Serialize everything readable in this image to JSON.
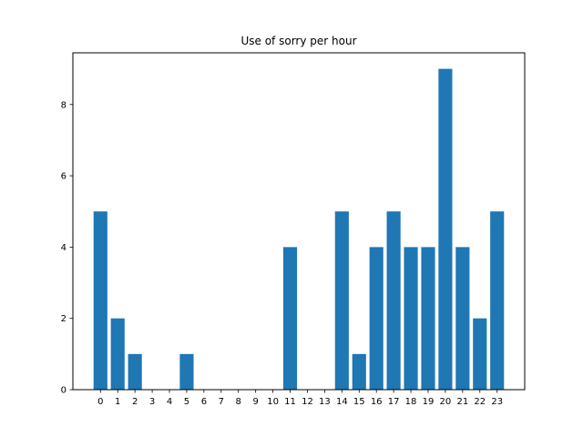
{
  "chart_data": {
    "type": "bar",
    "title": "Use of sorry per hour",
    "xlabel": "",
    "ylabel": "",
    "categories": [
      "0",
      "1",
      "2",
      "3",
      "4",
      "5",
      "6",
      "7",
      "8",
      "9",
      "10",
      "11",
      "12",
      "13",
      "14",
      "15",
      "16",
      "17",
      "18",
      "19",
      "20",
      "21",
      "22",
      "23"
    ],
    "values": [
      5,
      2,
      1,
      0,
      0,
      1,
      0,
      0,
      0,
      0,
      0,
      4,
      0,
      0,
      5,
      1,
      4,
      5,
      4,
      4,
      9,
      4,
      2,
      5
    ],
    "ylim": [
      0,
      9.45
    ],
    "yticks": [
      0,
      2,
      4,
      6,
      8
    ],
    "grid": false,
    "bar_color": "#1f77b4"
  }
}
